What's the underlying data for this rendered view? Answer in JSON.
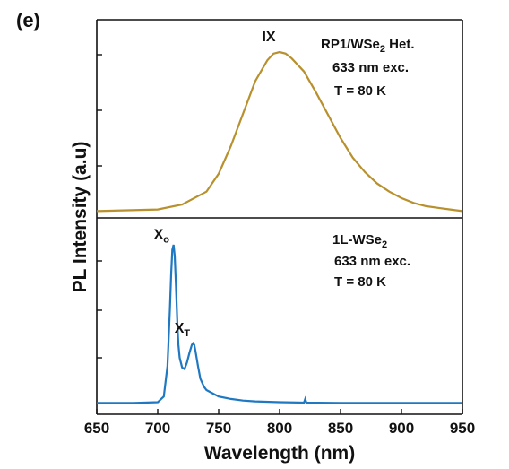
{
  "panel_label": "(e)",
  "colors": {
    "top_series": "#B8912E",
    "bottom_series": "#1F78C1",
    "axis": "#111111"
  },
  "chart_data": {
    "type": "line",
    "xlabel": "Wavelength (nm)",
    "ylabel": "PL Intensity (a.u)",
    "xlim": [
      650,
      950
    ],
    "xticks": [
      "650",
      "700",
      "750",
      "800",
      "850",
      "900",
      "950"
    ],
    "panels": [
      {
        "position": "top",
        "annotation": {
          "line1_main": "RP1/WSe",
          "line1_sub": "2",
          "line1_tail": " Het.",
          "line2": "633 nm exc.",
          "line3": "T = 80 K"
        },
        "peak_labels": [
          {
            "text": "IX",
            "sub": "",
            "x": 800
          }
        ],
        "series": [
          {
            "x": [
              650,
              700,
              720,
              740,
              750,
              760,
              770,
              780,
              790,
              795,
              800,
              805,
              810,
              820,
              830,
              840,
              850,
              860,
              870,
              880,
              890,
              900,
              910,
              920,
              930,
              940,
              950
            ],
            "y": [
              0.02,
              0.03,
              0.06,
              0.14,
              0.25,
              0.42,
              0.62,
              0.82,
              0.95,
              0.99,
              1.0,
              0.99,
              0.96,
              0.88,
              0.75,
              0.61,
              0.47,
              0.35,
              0.26,
              0.19,
              0.14,
              0.1,
              0.07,
              0.05,
              0.04,
              0.03,
              0.02
            ]
          }
        ]
      },
      {
        "position": "bottom",
        "annotation": {
          "line1_main": "1L-WSe",
          "line1_sub": "2",
          "line1_tail": "",
          "line2": "633 nm exc.",
          "line3": "T = 80 K"
        },
        "peak_labels": [
          {
            "text": "X",
            "sub": "o",
            "x": 712
          },
          {
            "text": "X",
            "sub": "T",
            "x": 729
          }
        ],
        "series": [
          {
            "x": [
              650,
              680,
              700,
              705,
              708,
              710,
              711,
              712,
              713,
              714,
              715,
              716,
              717,
              718,
              720,
              722,
              724,
              726,
              728,
              729,
              730,
              731,
              733,
              735,
              738,
              740,
              745,
              750,
              760,
              770,
              780,
              800,
              820,
              821,
              822,
              850,
              900,
              950
            ],
            "y": [
              0.02,
              0.02,
              0.025,
              0.06,
              0.25,
              0.6,
              0.82,
              0.97,
              1.0,
              0.93,
              0.74,
              0.53,
              0.38,
              0.3,
              0.24,
              0.23,
              0.27,
              0.33,
              0.38,
              0.39,
              0.38,
              0.34,
              0.25,
              0.17,
              0.12,
              0.1,
              0.08,
              0.06,
              0.045,
              0.035,
              0.03,
              0.025,
              0.022,
              0.045,
              0.022,
              0.02,
              0.02,
              0.02
            ]
          }
        ]
      }
    ]
  }
}
